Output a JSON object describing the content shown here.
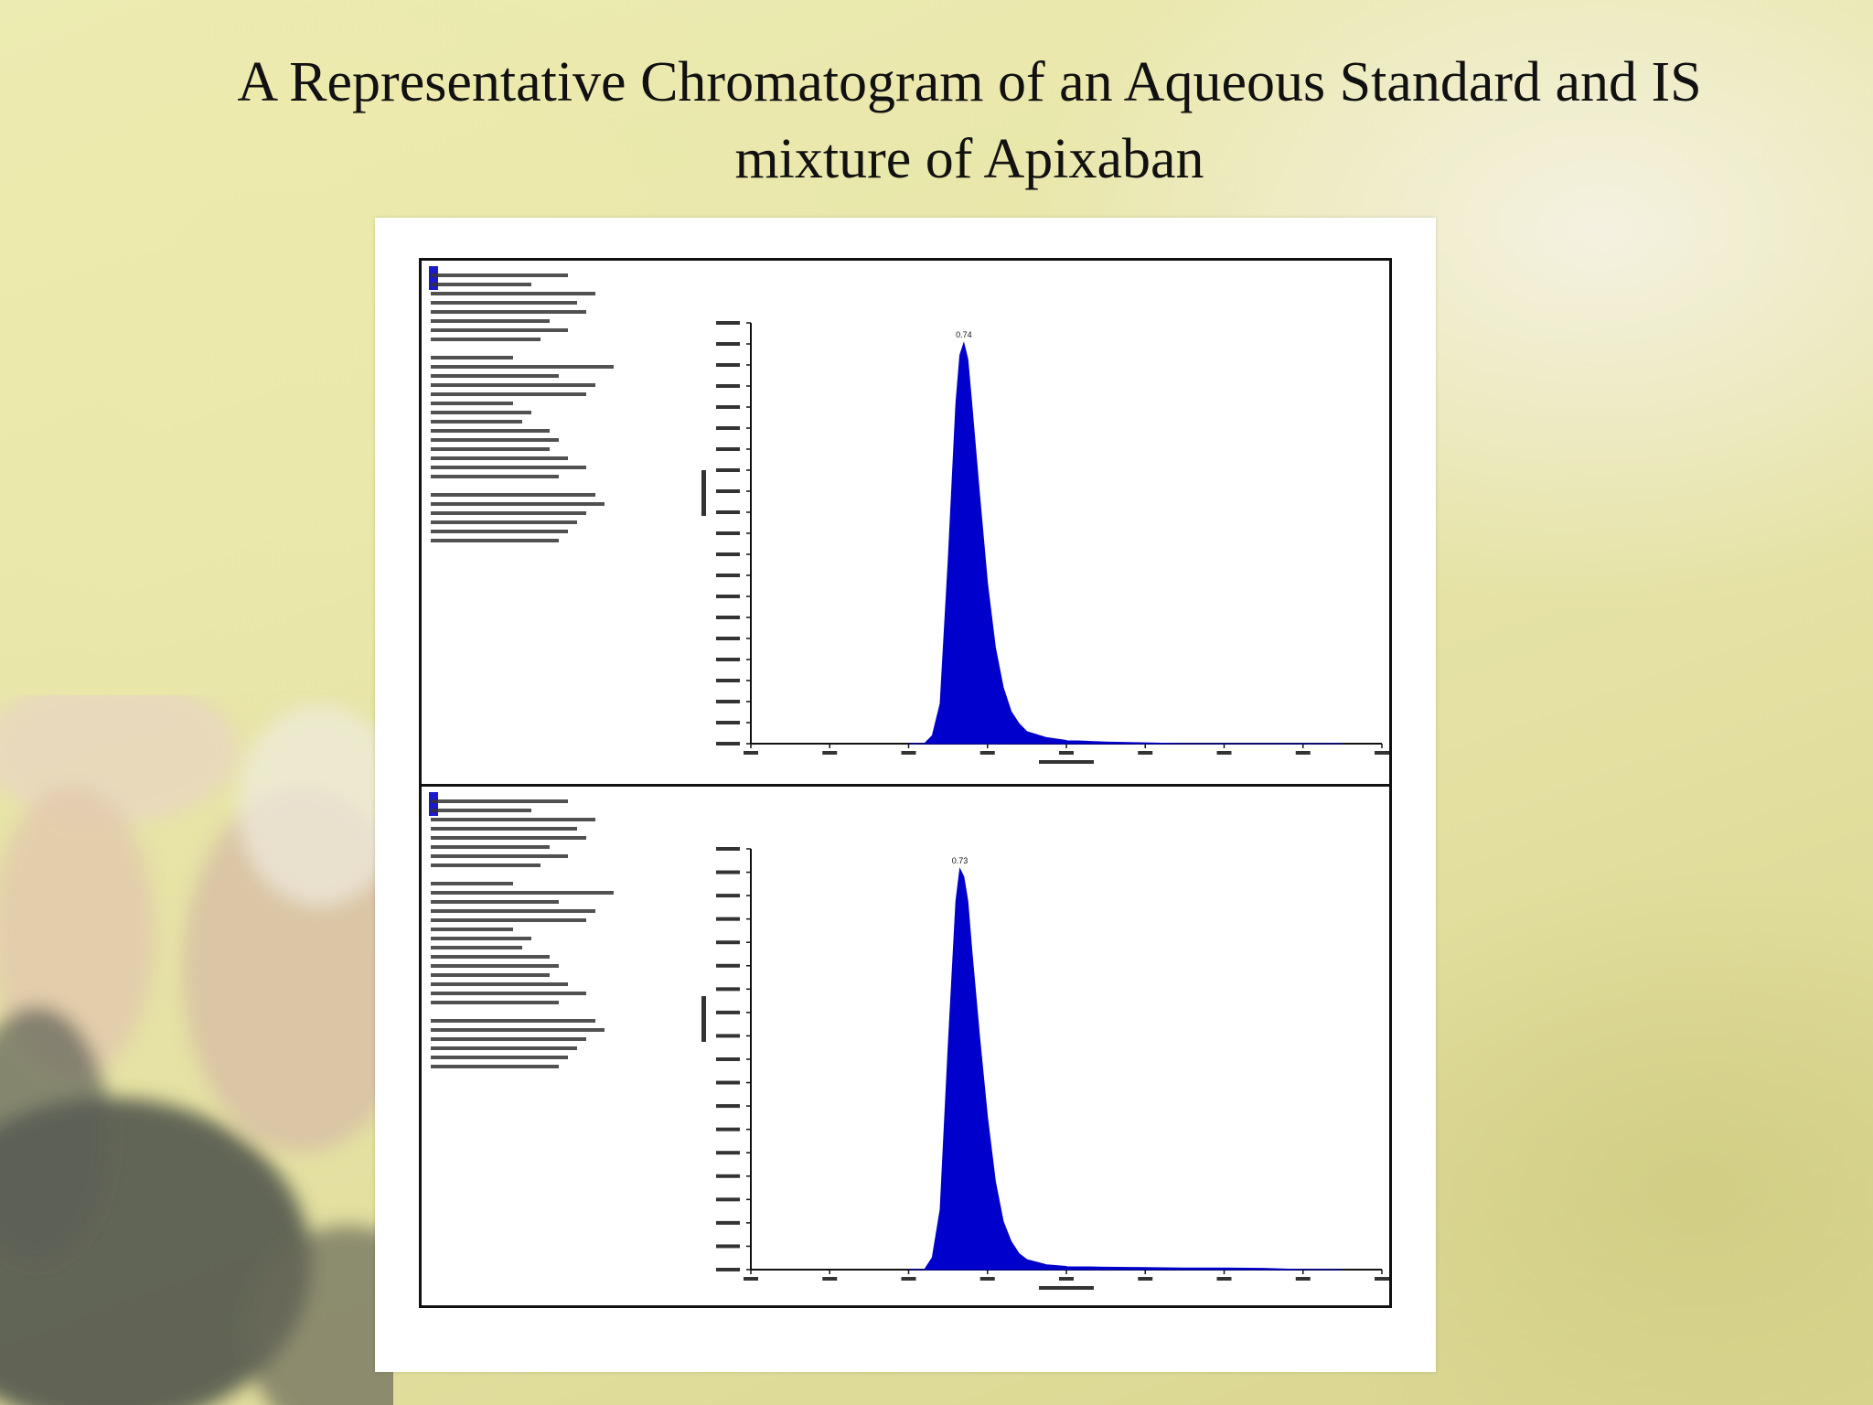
{
  "slide": {
    "title_line1": "A Representative Chromatogram of an Aqueous Standard and IS",
    "title_line2": "mixture of Apixaban"
  },
  "colors": {
    "peak": "#0000cc",
    "frame": "#111111"
  },
  "chart_data": [
    {
      "type": "area",
      "peak_label": "0.74",
      "x": [
        0.6,
        0.62,
        0.64,
        0.66,
        0.68,
        0.7,
        0.72,
        0.73,
        0.74,
        0.75,
        0.76,
        0.78,
        0.8,
        0.82,
        0.84,
        0.86,
        0.88,
        0.9,
        0.95,
        1.0,
        1.05,
        1.1,
        1.2,
        1.3,
        1.4,
        1.5,
        1.6,
        1.7
      ],
      "y": [
        0,
        0,
        0,
        0.02,
        0.1,
        0.45,
        0.85,
        0.97,
        1.0,
        0.96,
        0.85,
        0.62,
        0.4,
        0.24,
        0.14,
        0.08,
        0.05,
        0.03,
        0.015,
        0.008,
        0.006,
        0.004,
        0.002,
        0,
        0,
        0,
        0,
        0
      ],
      "xlim": [
        0.2,
        1.8
      ],
      "ylim": [
        0,
        1.05
      ]
    },
    {
      "type": "area",
      "peak_label": "0.73",
      "x": [
        0.6,
        0.62,
        0.64,
        0.66,
        0.68,
        0.7,
        0.72,
        0.73,
        0.74,
        0.75,
        0.76,
        0.78,
        0.8,
        0.82,
        0.84,
        0.86,
        0.88,
        0.9,
        0.95,
        1.0,
        1.1,
        1.2,
        1.3,
        1.4,
        1.5,
        1.6,
        1.7
      ],
      "y": [
        0,
        0,
        0,
        0.03,
        0.15,
        0.55,
        0.92,
        1.0,
        0.98,
        0.92,
        0.8,
        0.58,
        0.38,
        0.22,
        0.12,
        0.07,
        0.04,
        0.025,
        0.012,
        0.008,
        0.006,
        0.005,
        0.004,
        0.004,
        0.003,
        0,
        0
      ],
      "xlim": [
        0.2,
        1.8
      ],
      "ylim": [
        0,
        1.05
      ]
    }
  ]
}
